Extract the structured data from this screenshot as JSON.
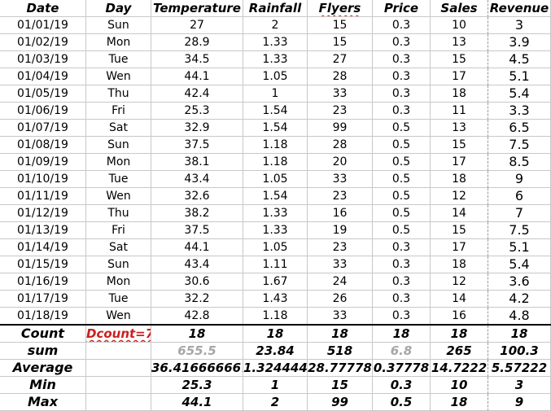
{
  "headers": [
    "Date",
    "Day",
    "Temperature",
    "Rainfall",
    "Flyers",
    "Price",
    "Sales",
    "Revenue"
  ],
  "rows": [
    [
      "01/01/19",
      "Sun",
      "27",
      "2",
      "15",
      "0.3",
      "10",
      "3"
    ],
    [
      "01/02/19",
      "Mon",
      "28.9",
      "1.33",
      "15",
      "0.3",
      "13",
      "3.9"
    ],
    [
      "01/03/19",
      "Tue",
      "34.5",
      "1.33",
      "27",
      "0.3",
      "15",
      "4.5"
    ],
    [
      "01/04/19",
      "Wen",
      "44.1",
      "1.05",
      "28",
      "0.3",
      "17",
      "5.1"
    ],
    [
      "01/05/19",
      "Thu",
      "42.4",
      "1",
      "33",
      "0.3",
      "18",
      "5.4"
    ],
    [
      "01/06/19",
      "Fri",
      "25.3",
      "1.54",
      "23",
      "0.3",
      "11",
      "3.3"
    ],
    [
      "01/07/19",
      "Sat",
      "32.9",
      "1.54",
      "99",
      "0.5",
      "13",
      "6.5"
    ],
    [
      "01/08/19",
      "Sun",
      "37.5",
      "1.18",
      "28",
      "0.5",
      "15",
      "7.5"
    ],
    [
      "01/09/19",
      "Mon",
      "38.1",
      "1.18",
      "20",
      "0.5",
      "17",
      "8.5"
    ],
    [
      "01/10/19",
      "Tue",
      "43.4",
      "1.05",
      "33",
      "0.5",
      "18",
      "9"
    ],
    [
      "01/11/19",
      "Wen",
      "32.6",
      "1.54",
      "23",
      "0.5",
      "12",
      "6"
    ],
    [
      "01/12/19",
      "Thu",
      "38.2",
      "1.33",
      "16",
      "0.5",
      "14",
      "7"
    ],
    [
      "01/13/19",
      "Fri",
      "37.5",
      "1.33",
      "19",
      "0.5",
      "15",
      "7.5"
    ],
    [
      "01/14/19",
      "Sat",
      "44.1",
      "1.05",
      "23",
      "0.3",
      "17",
      "5.1"
    ],
    [
      "01/15/19",
      "Sun",
      "43.4",
      "1.11",
      "33",
      "0.3",
      "18",
      "5.4"
    ],
    [
      "01/16/19",
      "Mon",
      "30.6",
      "1.67",
      "24",
      "0.3",
      "12",
      "3.6"
    ],
    [
      "01/17/19",
      "Tue",
      "32.2",
      "1.43",
      "26",
      "0.3",
      "14",
      "4.2"
    ],
    [
      "01/18/19",
      "Wen",
      "42.8",
      "1.18",
      "33",
      "0.3",
      "16",
      "4.8"
    ]
  ],
  "summary": [
    [
      "Count",
      "Dcount=7",
      "18",
      "18",
      "18",
      "18",
      "18",
      "18"
    ],
    [
      "sum",
      "",
      "655.5",
      "23.84",
      "518",
      "6.8",
      "265",
      "100.3"
    ],
    [
      "Average",
      "",
      "36.416666667",
      "1.324444",
      "28.77778",
      "0.37778",
      "14.7222",
      "5.57222"
    ],
    [
      "Min",
      "",
      "25.3",
      "1",
      "15",
      "0.3",
      "10",
      "3"
    ],
    [
      "Max",
      "",
      "44.1",
      "2",
      "99",
      "0.5",
      "18",
      "9"
    ]
  ],
  "colors": {
    "error_text": "#c9211e",
    "muted_text": "#a6a6a6",
    "grid": "#c8c8c8"
  }
}
